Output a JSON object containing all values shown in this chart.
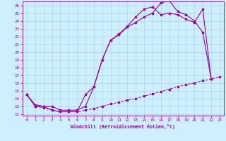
{
  "xlabel": "Windchill (Refroidissement éolien,°C)",
  "bg_color": "#cceeff",
  "line_color": "#990099",
  "xlim": [
    -0.5,
    23.5
  ],
  "ylim": [
    11.8,
    26.5
  ],
  "xticks": [
    0,
    1,
    2,
    3,
    4,
    5,
    6,
    7,
    8,
    9,
    10,
    11,
    12,
    13,
    14,
    15,
    16,
    17,
    18,
    19,
    20,
    21,
    22,
    23
  ],
  "yticks": [
    12,
    13,
    14,
    15,
    16,
    17,
    18,
    19,
    20,
    21,
    22,
    23,
    24,
    25,
    26
  ],
  "series1_x": [
    0,
    1,
    2,
    3,
    4,
    5,
    6,
    7,
    8,
    9,
    10,
    11,
    12,
    13,
    14,
    15,
    16,
    17,
    18,
    19,
    20,
    21,
    22
  ],
  "series1_y": [
    14.5,
    13.0,
    13.0,
    12.5,
    12.3,
    12.3,
    12.3,
    14.5,
    15.5,
    19.0,
    21.5,
    22.2,
    23.2,
    23.8,
    24.5,
    25.0,
    26.3,
    26.6,
    25.2,
    24.8,
    24.0,
    22.5,
    16.5
  ],
  "series2_x": [
    0,
    1,
    2,
    3,
    4,
    5,
    6,
    7,
    8,
    9,
    10,
    11,
    12,
    13,
    14,
    15,
    16,
    17,
    18,
    19,
    20,
    21,
    22,
    23
  ],
  "series2_y": [
    14.5,
    13.0,
    12.8,
    12.5,
    12.3,
    12.3,
    12.3,
    12.5,
    12.7,
    13.0,
    13.3,
    13.5,
    13.8,
    14.0,
    14.3,
    14.6,
    14.9,
    15.2,
    15.5,
    15.8,
    16.0,
    16.3,
    16.5,
    16.8
  ],
  "series3_x": [
    0,
    1,
    2,
    3,
    4,
    5,
    6,
    7,
    8,
    9,
    10,
    11,
    12,
    13,
    14,
    15,
    16,
    17,
    18,
    19,
    20,
    21,
    22
  ],
  "series3_y": [
    14.5,
    13.2,
    13.0,
    13.0,
    12.5,
    12.5,
    12.5,
    13.0,
    15.5,
    19.0,
    21.5,
    22.3,
    23.3,
    24.5,
    25.5,
    25.8,
    24.8,
    25.0,
    24.8,
    24.2,
    23.8,
    25.5,
    16.5
  ]
}
